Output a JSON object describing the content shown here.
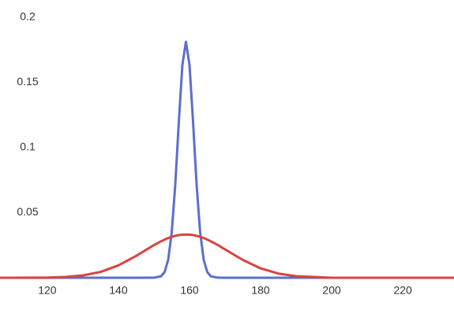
{
  "chart_data": {
    "type": "line",
    "x": [
      106.7,
      110,
      120,
      125,
      130,
      135,
      140,
      145,
      150,
      152,
      153,
      154,
      155,
      156,
      157,
      158,
      159,
      160,
      161,
      162,
      163,
      164,
      165,
      166,
      168,
      170,
      175,
      180,
      185,
      190,
      200,
      210,
      220,
      234.4
    ],
    "series": [
      {
        "color": "#5b6fce",
        "values": [
          0,
          0,
          0,
          0,
          0,
          0,
          0,
          0,
          4e-05,
          0.00115,
          0.0044,
          0.0137,
          0.0347,
          0.0715,
          0.1199,
          0.1635,
          0.1813,
          0.1635,
          0.1199,
          0.0715,
          0.0347,
          0.0137,
          0.0044,
          0.00115,
          4e-05,
          0,
          0,
          0,
          0,
          0,
          0,
          0,
          0,
          0
        ]
      },
      {
        "color": "#d9443f",
        "values": [
          0,
          0,
          0.00017,
          0.0006,
          0.0018,
          0.0045,
          0.0095,
          0.0168,
          0.0251,
          0.028,
          0.0293,
          0.0305,
          0.0314,
          0.0322,
          0.0328,
          0.0331,
          0.0332,
          0.0331,
          0.0328,
          0.0322,
          0.0314,
          0.0305,
          0.0293,
          0.028,
          0.0251,
          0.0218,
          0.0137,
          0.0072,
          0.0032,
          0.0012,
          0,
          0,
          0,
          0
        ]
      }
    ],
    "xlim": [
      106.7,
      234.4
    ],
    "xticks": [
      120,
      140,
      160,
      180,
      200,
      220
    ],
    "ylim": [
      0,
      0.2
    ],
    "yticks": [
      0.05,
      0.1,
      0.15,
      0.2
    ]
  }
}
